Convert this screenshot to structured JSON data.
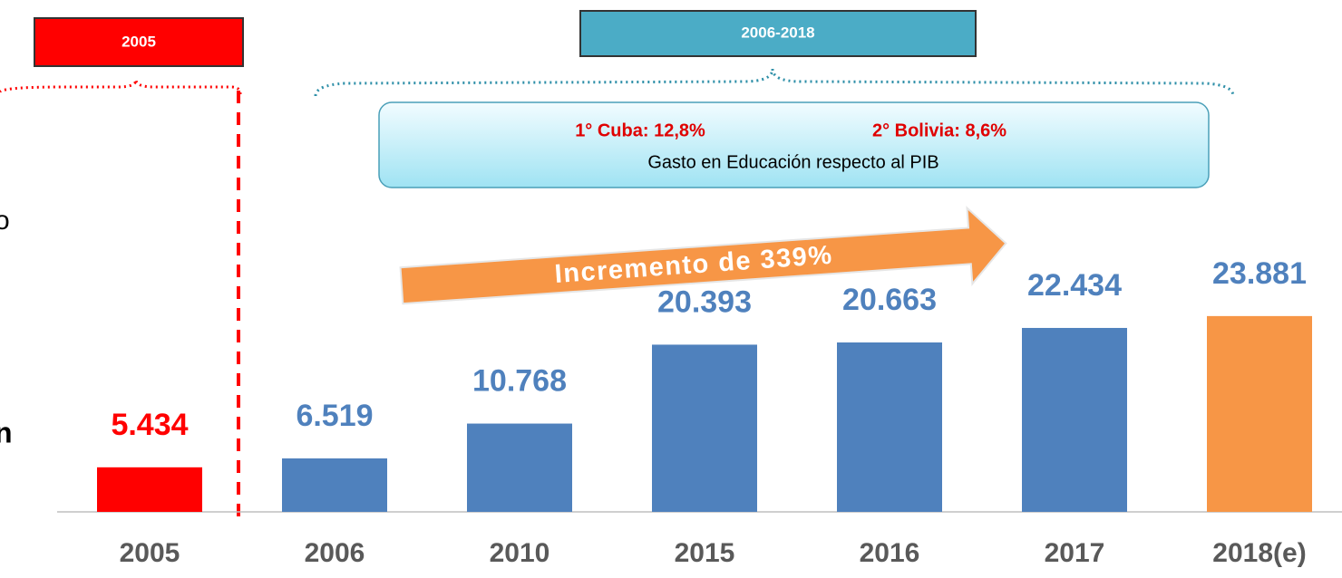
{
  "chart_data": {
    "type": "bar",
    "categories": [
      "2005",
      "2006",
      "2010",
      "2015",
      "2016",
      "2017",
      "2018(e)"
    ],
    "values": [
      5434,
      6519,
      10768,
      20393,
      20663,
      22434,
      23881
    ],
    "value_labels": [
      "5.434",
      "6.519",
      "10.768",
      "20.393",
      "20.663",
      "22.434",
      "23.881"
    ],
    "colors": [
      "#ff0000",
      "#4f81bd",
      "#4f81bd",
      "#4f81bd",
      "#4f81bd",
      "#4f81bd",
      "#f79646"
    ],
    "label_colors": [
      "#ff0000",
      "#4f81bd",
      "#4f81bd",
      "#4f81bd",
      "#4f81bd",
      "#4f81bd",
      "#4f81bd"
    ],
    "period_left": "2005",
    "period_right": "2006-2018",
    "callout": {
      "first": "1° Cuba: 12,8%",
      "second": "2° Bolivia: 8,6%",
      "caption": "Gasto en Educación respecto al PIB"
    },
    "arrow_text": "Incremento de 339%",
    "side_texts": [
      "o",
      "n"
    ]
  }
}
